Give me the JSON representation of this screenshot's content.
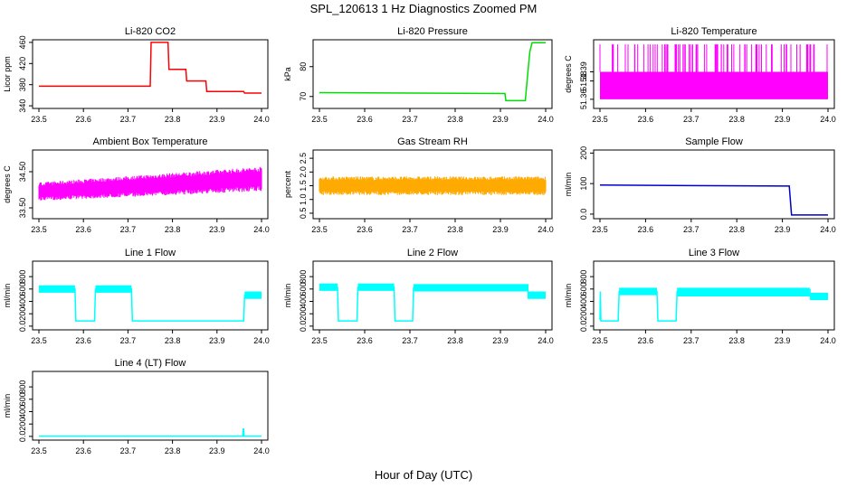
{
  "figure": {
    "title": "SPL_120613  1 Hz Diagnostics Zoomed PM",
    "xlabel": "Hour of Day (UTC)"
  },
  "chart_data": [
    {
      "type": "line",
      "title": "Li-820 CO2",
      "ylabel": "Licor ppm",
      "color": "#ff0000",
      "xlim": [
        23.5,
        24.0
      ],
      "ylim": [
        335,
        465
      ],
      "xticks": [
        23.5,
        23.6,
        23.7,
        23.8,
        23.9,
        24.0
      ],
      "yticks": [
        340,
        380,
        420,
        460
      ],
      "x": [
        23.5,
        23.75,
        23.752,
        23.79,
        23.792,
        23.83,
        23.832,
        23.875,
        23.877,
        23.96,
        23.962,
        24.0
      ],
      "y": [
        377,
        377,
        460,
        460,
        409,
        409,
        387,
        387,
        367,
        367,
        364,
        364
      ]
    },
    {
      "type": "line",
      "title": "Li-820 Pressure",
      "ylabel": "kPa",
      "color": "#00dd00",
      "xlim": [
        23.5,
        24.0
      ],
      "ylim": [
        66,
        89
      ],
      "xticks": [
        23.5,
        23.6,
        23.7,
        23.8,
        23.9,
        24.0
      ],
      "yticks": [
        70,
        80
      ],
      "x": [
        23.5,
        23.91,
        23.912,
        23.955,
        23.96,
        23.965,
        23.97,
        24.0
      ],
      "y": [
        71.3,
        71.0,
        68.6,
        68.6,
        77,
        85,
        88,
        88
      ]
    },
    {
      "type": "line",
      "title": "Li-820 Temperature",
      "ylabel": "degrees C",
      "color": "#ff00ff",
      "xlim": [
        23.5,
        24.0
      ],
      "ylim": [
        51.35,
        51.425
      ],
      "xticks": [
        23.5,
        23.6,
        23.7,
        23.8,
        23.9,
        24.0
      ],
      "yticks": [
        51.36,
        51.38,
        51.39
      ],
      "band_low": 51.36,
      "band_high": 51.39,
      "spike_top": 51.42
    },
    {
      "type": "line",
      "title": "Ambient Box Temperature",
      "ylabel": "degrees C",
      "color": "#ff00ff",
      "xlim": [
        23.5,
        24.0
      ],
      "ylim": [
        33.2,
        35.1
      ],
      "xticks": [
        23.5,
        23.6,
        23.7,
        23.8,
        23.9,
        24.0
      ],
      "yticks": [
        33.5,
        34.5
      ],
      "x": [
        23.5,
        24.0
      ],
      "y_low": [
        33.8,
        34.1
      ],
      "y_high": [
        34.1,
        34.5
      ]
    },
    {
      "type": "line",
      "title": "Gas Stream RH",
      "ylabel": "percent",
      "color": "#ffaa00",
      "xlim": [
        23.5,
        24.0
      ],
      "ylim": [
        0.3,
        2.8
      ],
      "xticks": [
        23.5,
        23.6,
        23.7,
        23.8,
        23.9,
        24.0
      ],
      "yticks": [
        0.5,
        1.0,
        1.5,
        2.0,
        2.5
      ],
      "x": [
        23.5,
        24.0
      ],
      "y_low": [
        1.3,
        1.3
      ],
      "y_high": [
        1.7,
        1.7
      ]
    },
    {
      "type": "line",
      "title": "Sample Flow",
      "ylabel": "ml/min",
      "color": "#0000cc",
      "xlim": [
        23.5,
        24.0
      ],
      "ylim": [
        -15,
        210
      ],
      "xticks": [
        23.5,
        23.6,
        23.7,
        23.8,
        23.9,
        24.0
      ],
      "yticks": [
        0,
        100,
        200
      ],
      "x": [
        23.5,
        23.915,
        23.92,
        24.0
      ],
      "y": [
        95,
        92,
        -3,
        -3
      ]
    },
    {
      "type": "line",
      "title": "Line 1 Flow",
      "ylabel": "ml/min",
      "color": "#00ffff",
      "xlim": [
        23.5,
        24.0
      ],
      "ylim": [
        -60,
        1050
      ],
      "xticks": [
        23.5,
        23.6,
        23.7,
        23.8,
        23.9,
        24.0
      ],
      "yticks": [
        0,
        200,
        400,
        600,
        800
      ],
      "x": [
        23.5,
        23.581,
        23.583,
        23.625,
        23.627,
        23.708,
        23.71,
        23.96,
        23.962,
        24.0
      ],
      "y": [
        600,
        600,
        85,
        85,
        600,
        600,
        85,
        85,
        500,
        500
      ]
    },
    {
      "type": "line",
      "title": "Line 2 Flow",
      "ylabel": "ml/min",
      "color": "#00ffff",
      "xlim": [
        23.5,
        24.0
      ],
      "ylim": [
        -60,
        1050
      ],
      "xticks": [
        23.5,
        23.6,
        23.7,
        23.8,
        23.9,
        24.0
      ],
      "yticks": [
        0,
        200,
        400,
        600,
        800
      ],
      "x": [
        23.5,
        23.54,
        23.542,
        23.583,
        23.585,
        23.665,
        23.667,
        23.706,
        23.708,
        23.96,
        23.962,
        24.0
      ],
      "y": [
        630,
        630,
        85,
        85,
        630,
        630,
        85,
        85,
        620,
        620,
        500,
        500
      ]
    },
    {
      "type": "line",
      "title": "Line 3 Flow",
      "ylabel": "ml/min",
      "color": "#00ffff",
      "xlim": [
        23.5,
        24.0
      ],
      "ylim": [
        -60,
        1050
      ],
      "xticks": [
        23.5,
        23.6,
        23.7,
        23.8,
        23.9,
        24.0
      ],
      "yticks": [
        0,
        200,
        400,
        600,
        800
      ],
      "x": [
        23.5,
        23.501,
        23.502,
        23.54,
        23.542,
        23.625,
        23.627,
        23.667,
        23.669,
        23.96,
        23.962,
        24.0
      ],
      "y": [
        100,
        560,
        85,
        85,
        560,
        560,
        85,
        85,
        560,
        540,
        480,
        480
      ]
    },
    {
      "type": "line",
      "title": "Line 4 (LT) Flow",
      "ylabel": "ml/min",
      "color": "#00ffff",
      "xlim": [
        23.5,
        24.0
      ],
      "ylim": [
        -60,
        1050
      ],
      "xticks": [
        23.5,
        23.6,
        23.7,
        23.8,
        23.9,
        24.0
      ],
      "yticks": [
        0,
        200,
        400,
        600,
        800
      ],
      "x": [
        23.5,
        23.958,
        23.959,
        23.96,
        23.961,
        24.0
      ],
      "y": [
        5,
        5,
        120,
        120,
        5,
        5
      ]
    }
  ]
}
